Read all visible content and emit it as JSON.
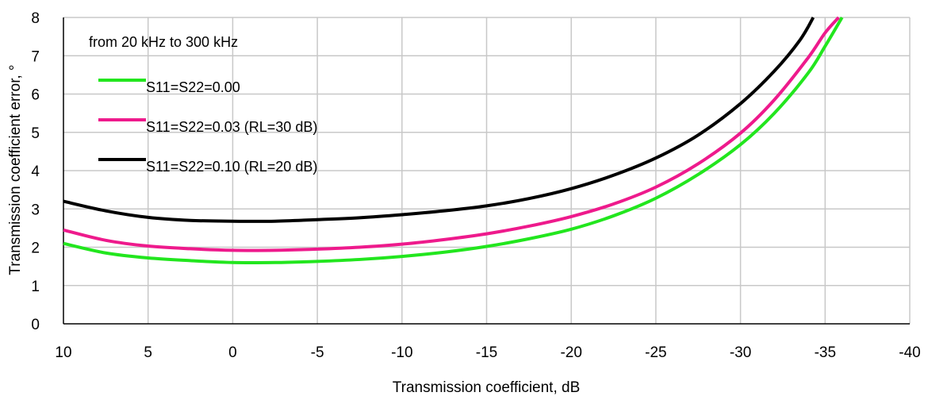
{
  "chart_data": {
    "type": "line",
    "title": "",
    "xlabel": "Transmission coefficient, dB",
    "ylabel": "Transmission coefficient error, °",
    "xlim": [
      10,
      -40
    ],
    "ylim": [
      0,
      8
    ],
    "x_ticks": [
      "10",
      "5",
      "0",
      "-5",
      "-10",
      "-15",
      "-20",
      "-25",
      "-30",
      "-35",
      "-40"
    ],
    "y_ticks": [
      "0",
      "1",
      "2",
      "3",
      "4",
      "5",
      "6",
      "7",
      "8"
    ],
    "grid": true,
    "legend_position": "top-left",
    "annotation": "from 20 kHz to 300 kHz",
    "series": [
      {
        "name": "S11=S22=0.00",
        "color": "#22e61e",
        "x": [
          10,
          7.5,
          5,
          2.5,
          0,
          -2.5,
          -5,
          -7.5,
          -10,
          -12.5,
          -15,
          -17.5,
          -20,
          -22.5,
          -25,
          -27.5,
          -30,
          -32,
          -34,
          -35,
          -36
        ],
        "y": [
          2.1,
          1.85,
          1.72,
          1.65,
          1.6,
          1.6,
          1.63,
          1.68,
          1.76,
          1.87,
          2.02,
          2.22,
          2.47,
          2.82,
          3.28,
          3.9,
          4.68,
          5.5,
          6.55,
          7.25,
          8.0
        ]
      },
      {
        "name": "S11=S22=0.03 (RL=30 dB)",
        "color": "#ee1a8c",
        "x": [
          10,
          7.5,
          5,
          2.5,
          0,
          -2.5,
          -5,
          -7.5,
          -10,
          -12.5,
          -15,
          -17.5,
          -20,
          -22.5,
          -25,
          -27.5,
          -30,
          -32,
          -34,
          -35,
          -35.8
        ],
        "y": [
          2.45,
          2.18,
          2.03,
          1.96,
          1.92,
          1.92,
          1.95,
          2.0,
          2.08,
          2.2,
          2.35,
          2.55,
          2.8,
          3.13,
          3.57,
          4.18,
          4.98,
          5.85,
          6.95,
          7.6,
          8.0
        ]
      },
      {
        "name": "S11=S22=0.10 (RL=20 dB)",
        "color": "#000000",
        "x": [
          10,
          7.5,
          5,
          2.5,
          0,
          -2.5,
          -5,
          -7.5,
          -10,
          -12.5,
          -15,
          -17.5,
          -20,
          -22.5,
          -25,
          -27.5,
          -30,
          -32,
          -33.5,
          -34.3
        ],
        "y": [
          3.2,
          2.95,
          2.78,
          2.7,
          2.68,
          2.68,
          2.72,
          2.77,
          2.85,
          2.95,
          3.08,
          3.27,
          3.53,
          3.88,
          4.33,
          4.93,
          5.75,
          6.6,
          7.4,
          8.0
        ]
      }
    ]
  }
}
